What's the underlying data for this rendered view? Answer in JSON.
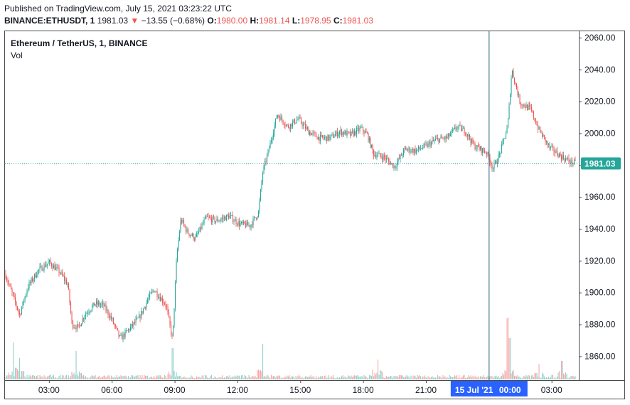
{
  "header": {
    "published": "Published on TradingView.com, July 15, 2021 03:23:22 UTC",
    "symbol": "BINANCE:ETHUSDT, 1",
    "last": "1981.03",
    "arrow": "▼",
    "change": "−13.55 (−0.68%)",
    "o_label": "O:",
    "o_value": "1980.00",
    "h_label": "H:",
    "h_value": "1981.14",
    "l_label": "L:",
    "l_value": "1978.95",
    "c_label": "C:",
    "c_value": "1981.03"
  },
  "pane": {
    "title": "Ethereum / TetherUS, 1, BINANCE",
    "volume_label": "Vol"
  },
  "colors": {
    "up": "#26a69a",
    "down": "#ef5350",
    "crosshair": "#1e5c7a",
    "time_highlight": "#2962ff"
  },
  "chart_data": {
    "type": "candlestick",
    "ylim": [
      1845,
      2064
    ],
    "y_ticks": [
      "2060.00",
      "2040.00",
      "2020.00",
      "2000.00",
      "1980.00",
      "1960.00",
      "1940.00",
      "1920.00",
      "1900.00",
      "1880.00",
      "1860.00"
    ],
    "y_tick_values": [
      2060,
      2040,
      2020,
      2000,
      1980,
      1960,
      1940,
      1920,
      1900,
      1880,
      1860
    ],
    "x_ticks": [
      "03:00",
      "06:00",
      "09:00",
      "12:00",
      "15:00",
      "18:00",
      "21:00",
      "00:00",
      "03:00"
    ],
    "x_tick_hours": [
      3,
      6,
      9,
      12,
      15,
      18,
      21,
      24,
      27
    ],
    "x_range_hours": [
      0.9,
      28.3
    ],
    "last_price": 1981.03,
    "last_price_label": "1981.03",
    "crosshair_time_hours": 24,
    "crosshair_date_label": "15 Jul '21",
    "crosshair_time_label": "00:00",
    "price_path": [
      [
        0.9,
        1912
      ],
      [
        1.3,
        1897
      ],
      [
        1.6,
        1886
      ],
      [
        2.0,
        1904
      ],
      [
        2.5,
        1914
      ],
      [
        3.0,
        1919
      ],
      [
        3.5,
        1913
      ],
      [
        3.9,
        1905
      ],
      [
        4.1,
        1880
      ],
      [
        4.4,
        1878
      ],
      [
        4.7,
        1886
      ],
      [
        5.2,
        1893
      ],
      [
        5.6,
        1892
      ],
      [
        6.0,
        1883
      ],
      [
        6.4,
        1871
      ],
      [
        6.9,
        1878
      ],
      [
        7.3,
        1884
      ],
      [
        7.7,
        1895
      ],
      [
        8.0,
        1902
      ],
      [
        8.3,
        1897
      ],
      [
        8.6,
        1892
      ],
      [
        8.9,
        1870
      ],
      [
        9.1,
        1923
      ],
      [
        9.3,
        1946
      ],
      [
        9.6,
        1938
      ],
      [
        10.0,
        1934
      ],
      [
        10.5,
        1947
      ],
      [
        11.0,
        1945
      ],
      [
        11.6,
        1948
      ],
      [
        12.1,
        1943
      ],
      [
        12.6,
        1942
      ],
      [
        13.0,
        1950
      ],
      [
        13.2,
        1975
      ],
      [
        13.5,
        1990
      ],
      [
        13.9,
        2012
      ],
      [
        14.4,
        2004
      ],
      [
        14.9,
        2009
      ],
      [
        15.4,
        2001
      ],
      [
        15.9,
        1997
      ],
      [
        16.4,
        1997
      ],
      [
        16.9,
        2001
      ],
      [
        17.4,
        1999
      ],
      [
        17.9,
        2003
      ],
      [
        18.2,
        1999
      ],
      [
        18.5,
        1987
      ],
      [
        19.0,
        1985
      ],
      [
        19.5,
        1979
      ],
      [
        20.0,
        1990
      ],
      [
        20.5,
        1989
      ],
      [
        21.0,
        1992
      ],
      [
        21.5,
        1996
      ],
      [
        22.0,
        1997
      ],
      [
        22.5,
        2004
      ],
      [
        22.9,
        2001
      ],
      [
        23.3,
        1992
      ],
      [
        23.6,
        1990
      ],
      [
        23.9,
        1988
      ],
      [
        24.2,
        1978
      ],
      [
        24.5,
        1986
      ],
      [
        24.9,
        2004
      ],
      [
        25.1,
        2040
      ],
      [
        25.5,
        2019
      ],
      [
        26.0,
        2015
      ],
      [
        26.4,
        2002
      ],
      [
        26.9,
        1991
      ],
      [
        27.4,
        1986
      ],
      [
        27.9,
        1982
      ],
      [
        28.2,
        1981
      ]
    ],
    "volume_spikes": [
      [
        1.3,
        52
      ],
      [
        1.6,
        30
      ],
      [
        4.3,
        40
      ],
      [
        8.9,
        44
      ],
      [
        13.2,
        50
      ],
      [
        18.7,
        28
      ],
      [
        24.9,
        80
      ],
      [
        25.0,
        58
      ],
      [
        26.4,
        22
      ],
      [
        27.5,
        26
      ]
    ],
    "volume_scale": 100
  }
}
